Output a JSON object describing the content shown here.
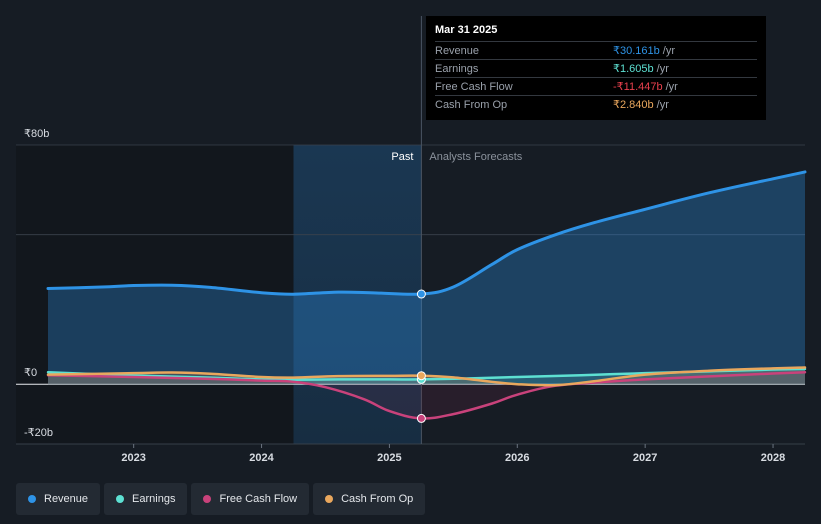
{
  "chart_data": {
    "type": "line",
    "currency": "₹",
    "ylim": [
      -20,
      80
    ],
    "y_ticks": [
      {
        "value": 80,
        "label": "₹80b"
      },
      {
        "value": 0,
        "label": "₹0"
      },
      {
        "value": -20,
        "label": "-₹20b"
      }
    ],
    "x_range": [
      2022.33,
      2028.25
    ],
    "x_ticks": [
      {
        "value": 2023,
        "label": "2023"
      },
      {
        "value": 2024,
        "label": "2024"
      },
      {
        "value": 2025,
        "label": "2025"
      },
      {
        "value": 2026,
        "label": "2026"
      },
      {
        "value": 2027,
        "label": "2027"
      },
      {
        "value": 2028,
        "label": "2028"
      }
    ],
    "past_start": 2024.25,
    "divider": 2025.25,
    "past_label": "Past",
    "forecast_label": "Analysts Forecasts",
    "series": [
      {
        "name": "Revenue",
        "color": "#2e93e6",
        "x": [
          2022.33,
          2022.75,
          2023.0,
          2023.3,
          2023.6,
          2024.0,
          2024.25,
          2024.6,
          2024.9,
          2025.25,
          2025.5,
          2025.8,
          2026.0,
          2026.3,
          2026.6,
          2027.0,
          2027.5,
          2028.0,
          2028.25
        ],
        "values": [
          32.0,
          32.5,
          33.0,
          33.1,
          32.4,
          30.6,
          30.1,
          30.8,
          30.5,
          30.16,
          32.5,
          40.0,
          45.0,
          50.0,
          54.0,
          58.5,
          64.0,
          68.7,
          71.0
        ]
      },
      {
        "name": "Earnings",
        "color": "#5de0d2",
        "x": [
          2022.33,
          2023.0,
          2023.6,
          2024.0,
          2024.25,
          2024.6,
          2025.0,
          2025.25,
          2025.6,
          2026.0,
          2026.5,
          2027.0,
          2027.5,
          2028.0,
          2028.25
        ],
        "values": [
          4.0,
          2.9,
          2.2,
          1.6,
          1.5,
          1.6,
          1.6,
          1.605,
          1.9,
          2.4,
          3.0,
          3.7,
          4.3,
          4.9,
          5.1
        ]
      },
      {
        "name": "Free Cash Flow",
        "color": "#c9427b",
        "x": [
          2022.33,
          2023.0,
          2023.6,
          2024.0,
          2024.25,
          2024.5,
          2024.8,
          2025.0,
          2025.25,
          2025.5,
          2025.8,
          2026.0,
          2026.3,
          2026.7,
          2027.0,
          2027.5,
          2028.0,
          2028.25
        ],
        "values": [
          3.0,
          2.4,
          1.8,
          1.2,
          0.8,
          -1.0,
          -5.0,
          -9.0,
          -11.447,
          -10.0,
          -6.5,
          -3.5,
          -0.5,
          0.8,
          1.6,
          2.6,
          3.6,
          4.0
        ]
      },
      {
        "name": "Cash From Op",
        "color": "#e9a75d",
        "x": [
          2022.33,
          2023.0,
          2023.3,
          2023.6,
          2024.0,
          2024.25,
          2024.6,
          2025.0,
          2025.25,
          2025.5,
          2025.8,
          2026.0,
          2026.3,
          2026.6,
          2027.0,
          2027.5,
          2028.0,
          2028.25
        ],
        "values": [
          3.2,
          3.7,
          3.9,
          3.5,
          2.4,
          2.2,
          2.7,
          2.8,
          2.84,
          2.3,
          0.8,
          0.0,
          -0.3,
          1.0,
          3.2,
          4.5,
          5.3,
          5.6
        ]
      }
    ]
  },
  "tooltip": {
    "date": "Mar 31 2025",
    "unit": "/yr",
    "rows": [
      {
        "name": "Revenue",
        "value": "₹30.161b",
        "color": "#2e93e6"
      },
      {
        "name": "Earnings",
        "value": "₹1.605b",
        "color": "#5de0d2"
      },
      {
        "name": "Free Cash Flow",
        "value": "-₹11.447b",
        "color": "#e8404d"
      },
      {
        "name": "Cash From Op",
        "value": "₹2.840b",
        "color": "#e9a75d"
      }
    ]
  },
  "legend": [
    {
      "label": "Revenue",
      "color": "#2e93e6"
    },
    {
      "label": "Earnings",
      "color": "#5de0d2"
    },
    {
      "label": "Free Cash Flow",
      "color": "#c9427b"
    },
    {
      "label": "Cash From Op",
      "color": "#e9a75d"
    }
  ]
}
